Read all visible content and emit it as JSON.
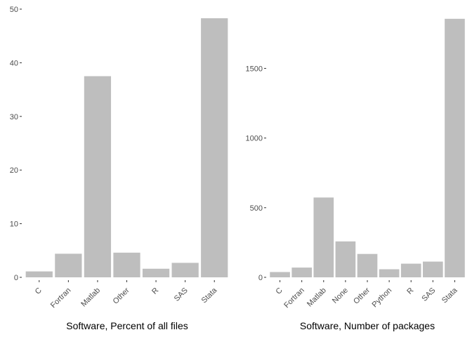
{
  "chart_data": [
    {
      "type": "bar",
      "xlabel": "Software, Percent of all files",
      "ylabel": "",
      "categories": [
        "C",
        "Fortran",
        "Matlab",
        "Other",
        "R",
        "SAS",
        "Stata"
      ],
      "values": [
        1.1,
        4.4,
        37.5,
        4.6,
        1.6,
        2.7,
        48.3
      ],
      "ylim": [
        0,
        50
      ],
      "yticks": [
        0,
        10,
        20,
        30,
        40,
        50
      ],
      "ytick_labels": [
        "0",
        "10",
        "20",
        "30",
        "40",
        "50"
      ],
      "grid": false,
      "bar_color": "#bebebe"
    },
    {
      "type": "bar",
      "xlabel": "Software, Number of packages",
      "ylabel": "",
      "categories": [
        "C",
        "Fortran",
        "Matlab",
        "None",
        "Other",
        "Python",
        "R",
        "SAS",
        "Stata"
      ],
      "values": [
        38,
        70,
        573,
        258,
        168,
        58,
        98,
        113,
        1856
      ],
      "ylim": [
        0,
        1860
      ],
      "yticks": [
        0,
        500,
        1000,
        1500
      ],
      "ytick_labels": [
        "0",
        "500",
        "1000",
        "1500"
      ],
      "grid": false,
      "bar_color": "#bebebe"
    }
  ]
}
